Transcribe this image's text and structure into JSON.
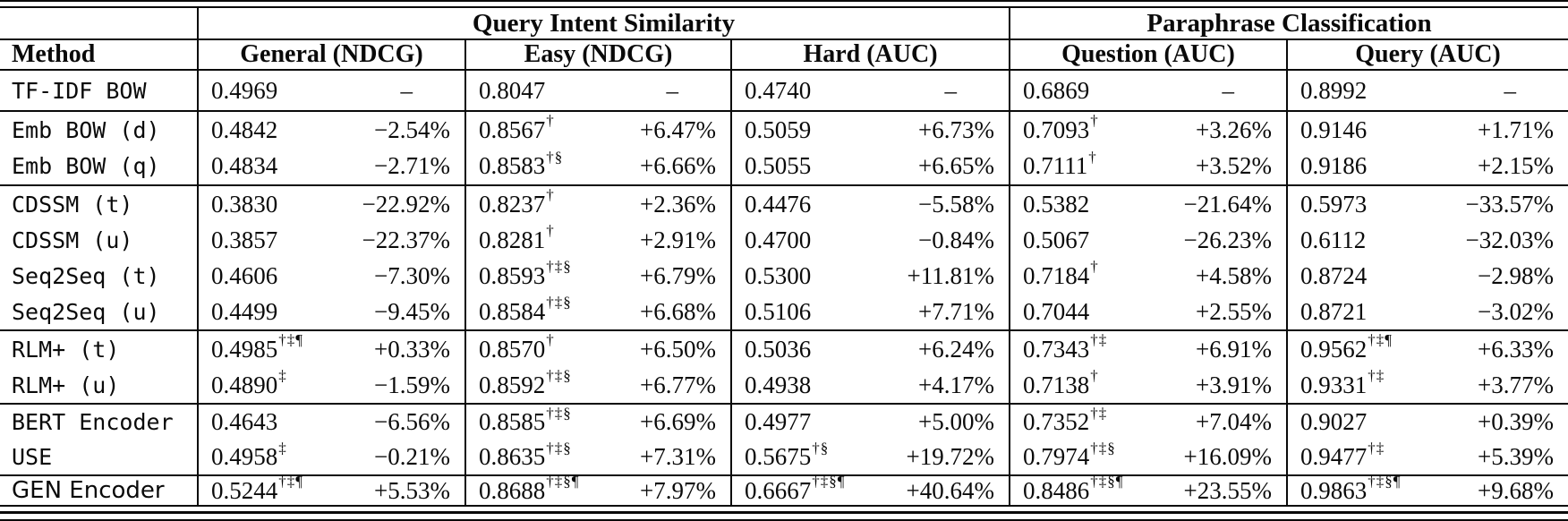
{
  "table": {
    "group_headers": [
      {
        "label": "Query Intent Similarity",
        "span": 3
      },
      {
        "label": "Paraphrase Classification",
        "span": 2
      }
    ],
    "method_header": "Method",
    "columns": [
      "General (NDCG)",
      "Easy (NDCG)",
      "Hard (AUC)",
      "Question (AUC)",
      "Query (AUC)"
    ],
    "colors": {
      "text": "#0a0a0a",
      "background": "#ffffff",
      "rule": "#0a0a0a"
    },
    "significance_symbols": [
      "†",
      "‡",
      "§",
      "¶"
    ],
    "groups": [
      {
        "rows": [
          {
            "method": "TF-IDF BOW",
            "cells": [
              {
                "v": "0.4969",
                "s": "",
                "d": "–"
              },
              {
                "v": "0.8047",
                "s": "",
                "d": "–"
              },
              {
                "v": "0.4740",
                "s": "",
                "d": "–"
              },
              {
                "v": "0.6869",
                "s": "",
                "d": "–"
              },
              {
                "v": "0.8992",
                "s": "",
                "d": "–"
              }
            ]
          }
        ]
      },
      {
        "rows": [
          {
            "method": "Emb BOW (d)",
            "cells": [
              {
                "v": "0.4842",
                "s": "",
                "d": "−2.54%"
              },
              {
                "v": "0.8567",
                "s": "†",
                "d": "+6.47%"
              },
              {
                "v": "0.5059",
                "s": "",
                "d": "+6.73%"
              },
              {
                "v": "0.7093",
                "s": "†",
                "d": "+3.26%"
              },
              {
                "v": "0.9146",
                "s": "",
                "d": "+1.71%"
              }
            ]
          },
          {
            "method": "Emb BOW (q)",
            "cells": [
              {
                "v": "0.4834",
                "s": "",
                "d": "−2.71%"
              },
              {
                "v": "0.8583",
                "s": "†§",
                "d": "+6.66%"
              },
              {
                "v": "0.5055",
                "s": "",
                "d": "+6.65%"
              },
              {
                "v": "0.7111",
                "s": "†",
                "d": "+3.52%"
              },
              {
                "v": "0.9186",
                "s": "",
                "d": "+2.15%"
              }
            ]
          }
        ]
      },
      {
        "rows": [
          {
            "method": "CDSSM (t)",
            "cells": [
              {
                "v": "0.3830",
                "s": "",
                "d": "−22.92%"
              },
              {
                "v": "0.8237",
                "s": "†",
                "d": "+2.36%"
              },
              {
                "v": "0.4476",
                "s": "",
                "d": "−5.58%"
              },
              {
                "v": "0.5382",
                "s": "",
                "d": "−21.64%"
              },
              {
                "v": "0.5973",
                "s": "",
                "d": "−33.57%"
              }
            ]
          },
          {
            "method": "CDSSM (u)",
            "cells": [
              {
                "v": "0.3857",
                "s": "",
                "d": "−22.37%"
              },
              {
                "v": "0.8281",
                "s": "†",
                "d": "+2.91%"
              },
              {
                "v": "0.4700",
                "s": "",
                "d": "−0.84%"
              },
              {
                "v": "0.5067",
                "s": "",
                "d": "−26.23%"
              },
              {
                "v": "0.6112",
                "s": "",
                "d": "−32.03%"
              }
            ]
          },
          {
            "method": "Seq2Seq (t)",
            "cells": [
              {
                "v": "0.4606",
                "s": "",
                "d": "−7.30%"
              },
              {
                "v": "0.8593",
                "s": "†‡§",
                "d": "+6.79%"
              },
              {
                "v": "0.5300",
                "s": "",
                "d": "+11.81%"
              },
              {
                "v": "0.7184",
                "s": "†",
                "d": "+4.58%"
              },
              {
                "v": "0.8724",
                "s": "",
                "d": "−2.98%"
              }
            ]
          },
          {
            "method": "Seq2Seq (u)",
            "cells": [
              {
                "v": "0.4499",
                "s": "",
                "d": "−9.45%"
              },
              {
                "v": "0.8584",
                "s": "†‡§",
                "d": "+6.68%"
              },
              {
                "v": "0.5106",
                "s": "",
                "d": "+7.71%"
              },
              {
                "v": "0.7044",
                "s": "",
                "d": "+2.55%"
              },
              {
                "v": "0.8721",
                "s": "",
                "d": "−3.02%"
              }
            ]
          }
        ]
      },
      {
        "rows": [
          {
            "method": "RLM+ (t)",
            "cells": [
              {
                "v": "0.4985",
                "s": "†‡¶",
                "d": "+0.33%"
              },
              {
                "v": "0.8570",
                "s": "†",
                "d": "+6.50%"
              },
              {
                "v": "0.5036",
                "s": "",
                "d": "+6.24%"
              },
              {
                "v": "0.7343",
                "s": "†‡",
                "d": "+6.91%"
              },
              {
                "v": "0.9562",
                "s": "†‡¶",
                "d": "+6.33%"
              }
            ]
          },
          {
            "method": "RLM+ (u)",
            "cells": [
              {
                "v": "0.4890",
                "s": "‡",
                "d": "−1.59%"
              },
              {
                "v": "0.8592",
                "s": "†‡§",
                "d": "+6.77%"
              },
              {
                "v": "0.4938",
                "s": "",
                "d": "+4.17%"
              },
              {
                "v": "0.7138",
                "s": "†",
                "d": "+3.91%"
              },
              {
                "v": "0.9331",
                "s": "†‡",
                "d": "+3.77%"
              }
            ]
          }
        ]
      },
      {
        "rows": [
          {
            "method": "BERT Encoder",
            "cells": [
              {
                "v": "0.4643",
                "s": "",
                "d": "−6.56%"
              },
              {
                "v": "0.8585",
                "s": "†‡§",
                "d": "+6.69%"
              },
              {
                "v": "0.4977",
                "s": "",
                "d": "+5.00%"
              },
              {
                "v": "0.7352",
                "s": "†‡",
                "d": "+7.04%"
              },
              {
                "v": "0.9027",
                "s": "",
                "d": "+0.39%"
              }
            ]
          },
          {
            "method": "USE",
            "cells": [
              {
                "v": "0.4958",
                "s": "‡",
                "d": "−0.21%"
              },
              {
                "v": "0.8635",
                "s": "†‡§",
                "d": "+7.31%"
              },
              {
                "v": "0.5675",
                "s": "†§",
                "d": "+19.72%"
              },
              {
                "v": "0.7974",
                "s": "†‡§",
                "d": "+16.09%"
              },
              {
                "v": "0.9477",
                "s": "†‡",
                "d": "+5.39%"
              }
            ]
          }
        ]
      },
      {
        "rows": [
          {
            "method": "GEN Encoder",
            "cells": [
              {
                "v": "0.5244",
                "s": "†‡¶",
                "d": "+5.53%"
              },
              {
                "v": "0.8688",
                "s": "†‡§¶",
                "d": "+7.97%"
              },
              {
                "v": "0.6667",
                "s": "†‡§¶",
                "d": "+40.64%"
              },
              {
                "v": "0.8486",
                "s": "†‡§¶",
                "d": "+23.55%"
              },
              {
                "v": "0.9863",
                "s": "†‡§¶",
                "d": "+9.68%"
              }
            ]
          }
        ]
      }
    ]
  }
}
